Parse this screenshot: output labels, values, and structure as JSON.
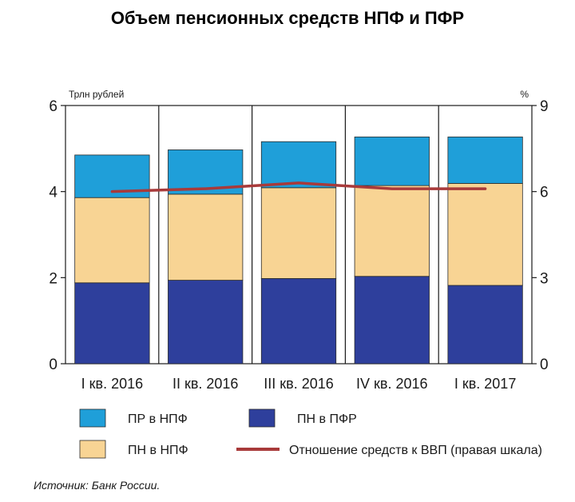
{
  "chart_data": {
    "type": "bar",
    "stacked": true,
    "title": "Объем пенсионных средств НПФ и ПФР",
    "ylabel_left": "Трлн рублей",
    "ylabel_right": "%",
    "ylim": [
      0,
      6
    ],
    "ylim_right": [
      0,
      9
    ],
    "yticks_left": [
      "0",
      "2",
      "4",
      "6"
    ],
    "yticks_right": [
      "0",
      "3",
      "6",
      "9"
    ],
    "categories": [
      "I кв. 2016",
      "II кв. 2016",
      "III кв. 2016",
      "IV кв. 2016",
      "I кв. 2017"
    ],
    "series": [
      {
        "name": "ПН в ПФР",
        "color": "#2e3f9c",
        "values": [
          1.88,
          1.94,
          1.98,
          2.03,
          1.82
        ]
      },
      {
        "name": "ПН в НПФ",
        "color": "#f8d494",
        "values": [
          1.98,
          2.0,
          2.11,
          2.11,
          2.37
        ]
      },
      {
        "name": "ПР в НПФ",
        "color": "#1f9fd9",
        "values": [
          0.99,
          1.03,
          1.07,
          1.13,
          1.08
        ]
      }
    ],
    "line_series": {
      "name": "Отношение средств к ВВП (правая шкала)",
      "color": "#a83a3a",
      "axis": "right",
      "values": [
        6.0,
        6.1,
        6.3,
        6.1,
        6.1
      ]
    },
    "grid": false,
    "legend_position": "bottom"
  },
  "source": "Источник: Банк России."
}
